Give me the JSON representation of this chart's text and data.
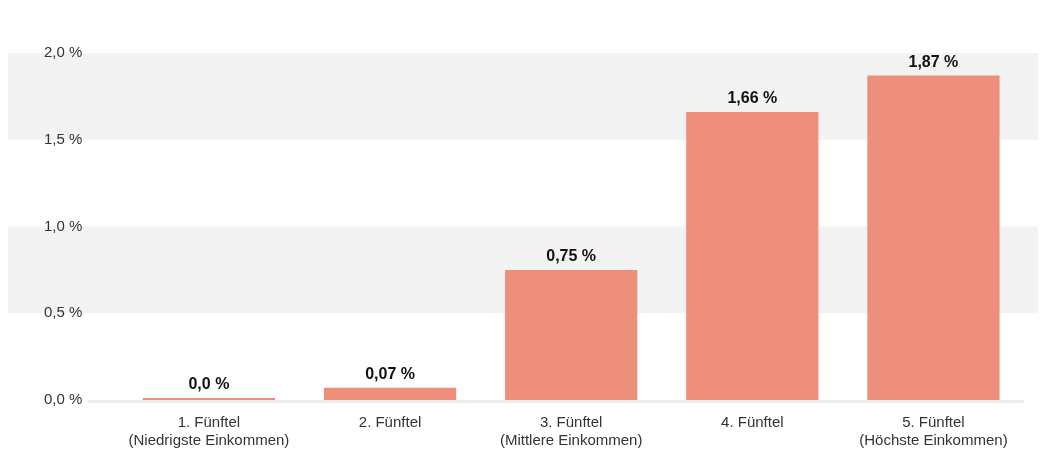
{
  "chart_data": {
    "type": "bar",
    "categories": [
      "1. Fünftel\n(Niedrigste Einkommen)",
      "2. Fünftel",
      "3. Fünftel\n(Mittlere Einkommen)",
      "4. Fünftel",
      "5. Fünftel\n(Höchste Einkommen)"
    ],
    "values": [
      0.0,
      0.07,
      0.75,
      1.66,
      1.87
    ],
    "value_labels": [
      "0,0 %",
      "0,07 %",
      "0,75 %",
      "1,66 %",
      "1,87 %"
    ],
    "color": "#ee8f7c",
    "ylim": [
      0,
      2.0
    ],
    "yticks": [
      {
        "value": 0,
        "label": "0,0 %"
      },
      {
        "value": 0.5,
        "label": "0,5 %"
      },
      {
        "value": 1.0,
        "label": "1,0 %"
      },
      {
        "value": 1.5,
        "label": "1,5 %"
      },
      {
        "value": 2.0,
        "label": "2,0 %"
      }
    ],
    "bands": [
      {
        "axis": "y",
        "from": 0.5,
        "to": 1.0,
        "color": "#f3f3f3"
      },
      {
        "axis": "y",
        "from": 1.5,
        "to": 2.0,
        "color": "#f3f3f3"
      }
    ],
    "grid": false,
    "legend": false
  }
}
